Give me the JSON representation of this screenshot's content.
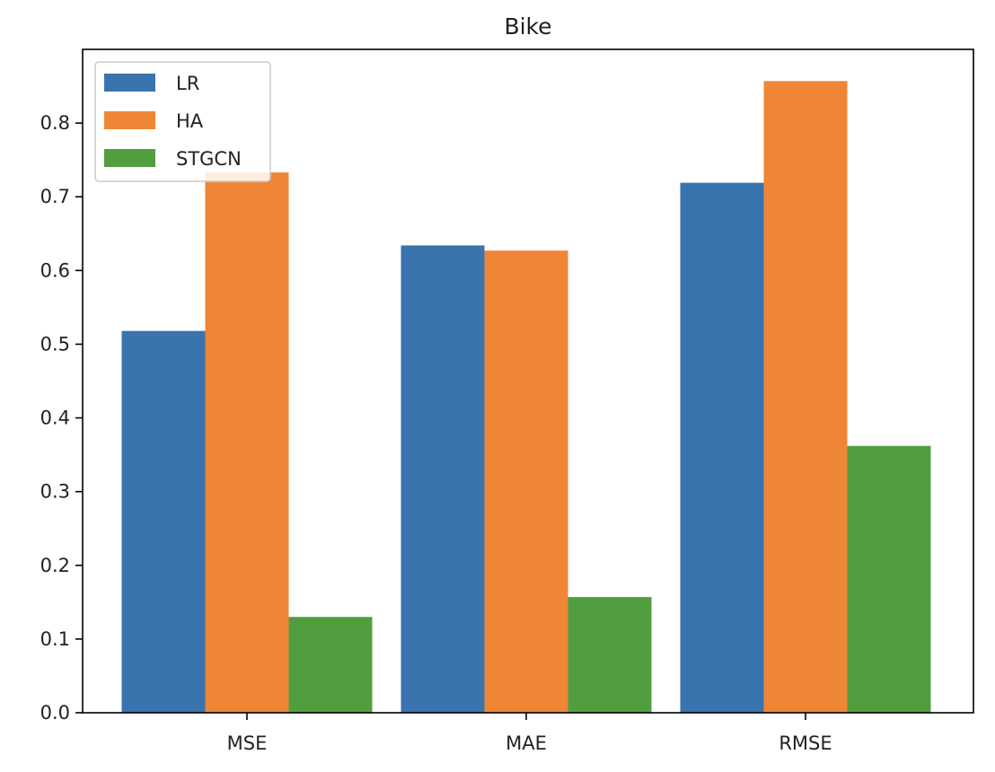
{
  "chart_data": {
    "type": "bar",
    "title": "Bike",
    "xlabel": "",
    "ylabel": "",
    "categories": [
      "MSE",
      "MAE",
      "RMSE"
    ],
    "series": [
      {
        "name": "LR",
        "color": "#3A74AF",
        "values": [
          0.518,
          0.634,
          0.719
        ]
      },
      {
        "name": "HA",
        "color": "#EF8636",
        "values": [
          0.733,
          0.627,
          0.857
        ]
      },
      {
        "name": "STGCN",
        "color": "#529E3E",
        "values": [
          0.13,
          0.157,
          0.362
        ]
      }
    ],
    "ylim": [
      0,
      0.9
    ],
    "yticks": [
      "0.0",
      "0.1",
      "0.2",
      "0.3",
      "0.4",
      "0.5",
      "0.6",
      "0.7",
      "0.8"
    ],
    "grid": false,
    "legend_position": "top-left"
  }
}
